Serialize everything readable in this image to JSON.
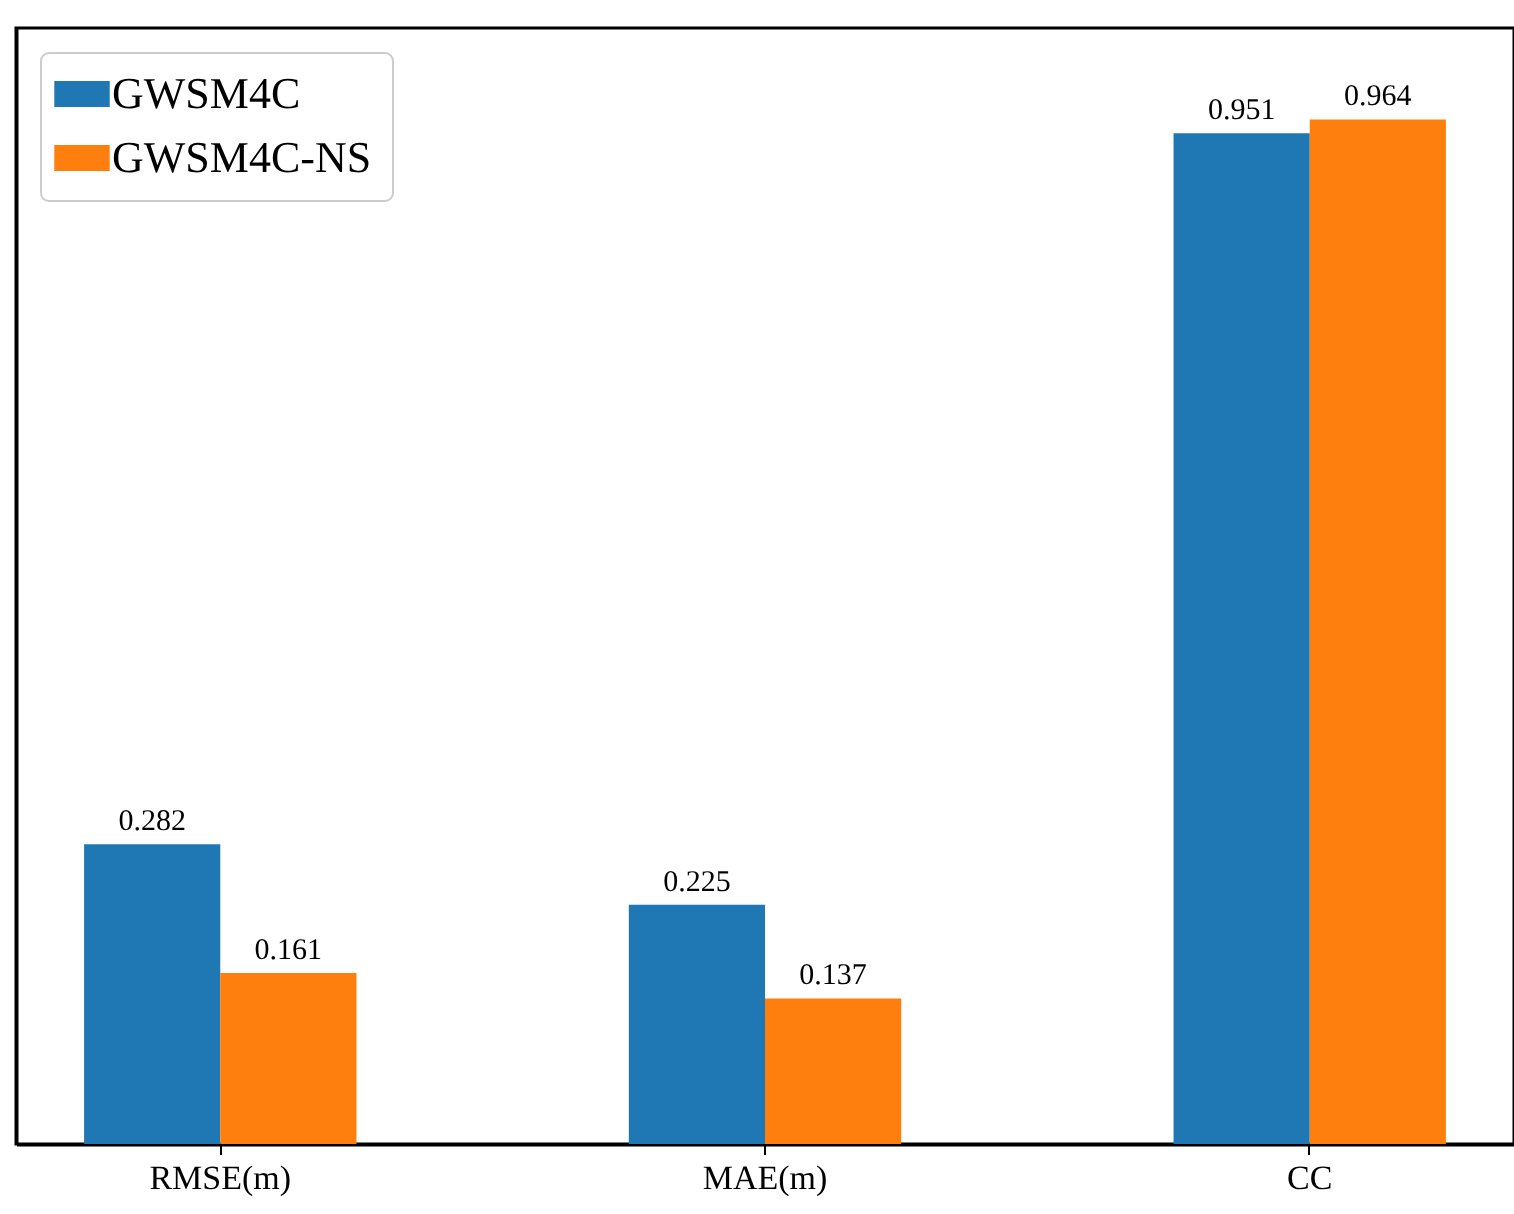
{
  "chart_data": {
    "type": "bar",
    "categories": [
      "RMSE(m)",
      "MAE(m)",
      "CC"
    ],
    "series": [
      {
        "name": "GWSM4C",
        "color": "#1f77b4",
        "values": [
          0.282,
          0.225,
          0.951
        ]
      },
      {
        "name": "GWSM4C-NS",
        "color": "#ff7f0e",
        "values": [
          0.161,
          0.137,
          0.964
        ]
      }
    ],
    "ylim": [
      0,
      1.05
    ],
    "data_labels": true,
    "legend": "top left",
    "grid": false,
    "tick_labels": "x"
  }
}
